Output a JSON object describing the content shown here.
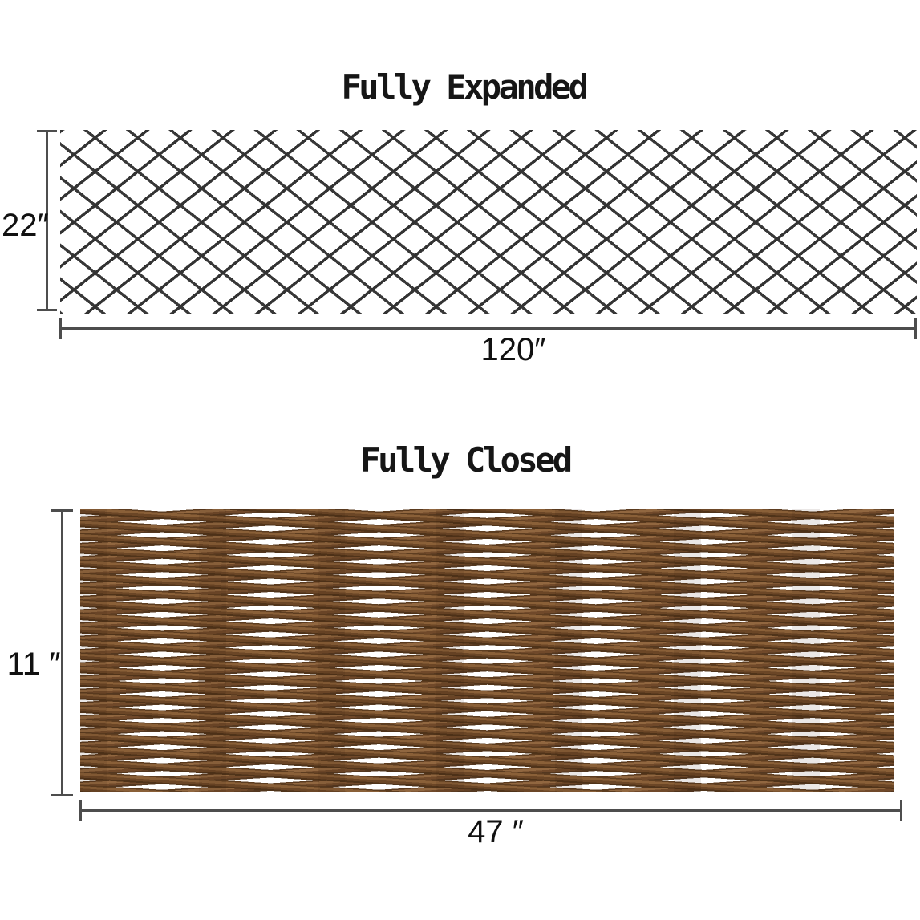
{
  "canvas": {
    "background": "#ffffff"
  },
  "expanded": {
    "title": "Fully Expanded",
    "height_label": "22″",
    "width_label": "120″",
    "lattice_line_color": "#333333"
  },
  "closed": {
    "title": "Fully Closed",
    "height_label": "11 ″",
    "width_label": "47 ″",
    "stick_colors": [
      "#4f3319",
      "#6b4626",
      "#8a6038",
      "#916740"
    ]
  },
  "dimension_style": {
    "line_color": "#4d4d4d",
    "text_color": "#111111"
  }
}
